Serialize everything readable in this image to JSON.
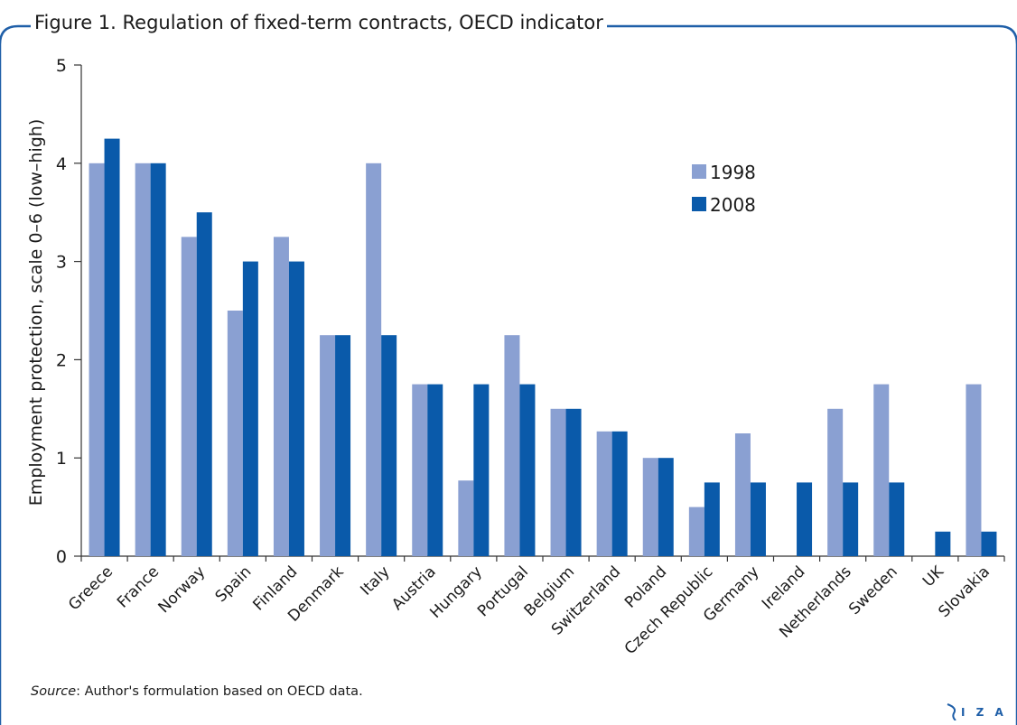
{
  "figure": {
    "title": "Figure 1. Regulation of fixed-term contracts, OECD indicator",
    "source_label": "Source",
    "source_text": ": Author's formulation based on OECD data.",
    "logo_text": "I Z A"
  },
  "colors": {
    "frame": "#1f5fa8",
    "series_1998": "#8aa0d2",
    "series_2008": "#0a5aaa",
    "axis": "#333333"
  },
  "chart_data": {
    "type": "bar",
    "title": "Figure 1. Regulation of fixed-term contracts, OECD indicator",
    "xlabel": "",
    "ylabel": "Employment protection, scale 0–6 (low–high)",
    "ylim": [
      0,
      5
    ],
    "yticks": [
      0,
      1,
      2,
      3,
      4,
      5
    ],
    "grid": false,
    "legend": "top-right",
    "categories": [
      "Greece",
      "France",
      "Norway",
      "Spain",
      "Finland",
      "Denmark",
      "Italy",
      "Austria",
      "Hungary",
      "Portugal",
      "Belgium",
      "Switzerland",
      "Poland",
      "Czech Republic",
      "Germany",
      "Ireland",
      "Netherlands",
      "Sweden",
      "UK",
      "Slovakia"
    ],
    "series": [
      {
        "name": "1998",
        "color": "#8aa0d2",
        "values": [
          4.0,
          4.0,
          3.25,
          2.5,
          3.25,
          2.25,
          4.0,
          1.75,
          0.77,
          2.25,
          1.5,
          1.27,
          1.0,
          0.5,
          1.25,
          0,
          1.5,
          1.75,
          0,
          1.75
        ]
      },
      {
        "name": "2008",
        "color": "#0a5aaa",
        "values": [
          4.25,
          4.0,
          3.5,
          3.0,
          3.0,
          2.25,
          2.25,
          1.75,
          1.75,
          1.75,
          1.5,
          1.27,
          1.0,
          0.75,
          0.75,
          0.75,
          0.75,
          0.75,
          0.25,
          0.25
        ]
      }
    ]
  }
}
